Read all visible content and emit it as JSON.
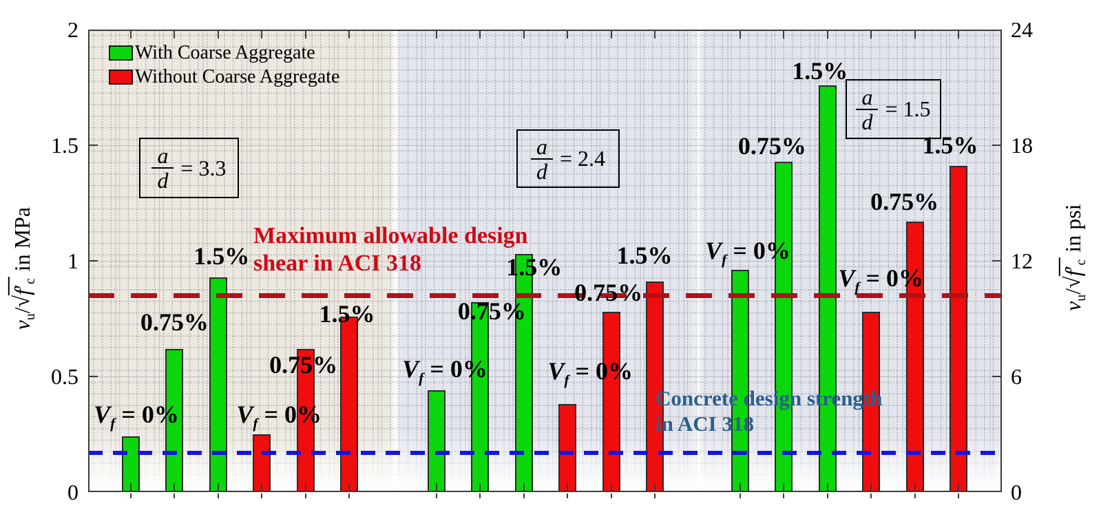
{
  "chart_data": {
    "type": "bar",
    "title": "",
    "left_axis": {
      "unit": "in MPa",
      "range_mpa": [
        0,
        2
      ],
      "tick_values": [
        2,
        1.5,
        1,
        0.5,
        0
      ],
      "tick_labels": [
        "2",
        "1.5",
        "1",
        "0.5",
        "0"
      ],
      "parts": {
        "sym": "v",
        "sym_sub": "u",
        "slash": "/",
        "sqrt": "√",
        "f": "f",
        "prime": "′",
        "f_sub": "c",
        "unit": "in MPa"
      }
    },
    "right_axis": {
      "unit": "in psi",
      "range_psi": [
        0,
        24
      ],
      "tick_values": [
        2,
        1.5,
        1,
        0.5,
        0
      ],
      "tick_labels": [
        "24",
        "18",
        "12",
        "6",
        "0"
      ],
      "parts": {
        "sym": "v",
        "sym_sub": "u",
        "slash": "/",
        "sqrt": "√",
        "f": "f",
        "prime": "′",
        "f_sub": "c",
        "unit": "in psi"
      }
    },
    "legend": [
      {
        "label": "With Coarse Aggregate",
        "color": "#0CD60C"
      },
      {
        "label": "Without Coarse Aggregate",
        "color": "#F00D0D"
      }
    ],
    "math": {
      "frac_num": "a",
      "frac_den": "d",
      "equals": "="
    },
    "groups": [
      {
        "ad": "3.3",
        "bars": [
          {
            "series": "with",
            "vf": "0%",
            "label": "Vf = 0%",
            "value_mpa": 0.24,
            "label_dx": 8,
            "label_dy": 14
          },
          {
            "series": "with",
            "vf": "0.75%",
            "label": "0.75%",
            "value_mpa": 0.62,
            "label_dx": 0,
            "label_dy": 21
          },
          {
            "series": "with",
            "vf": "1.5%",
            "label": "1.5%",
            "value_mpa": 0.93,
            "label_dx": 5,
            "label_dy": 13
          },
          {
            "series": "without",
            "vf": "0%",
            "label": "Vf = 0%",
            "value_mpa": 0.25,
            "label_dx": 25,
            "label_dy": 11
          },
          {
            "series": "without",
            "vf": "0.75%",
            "label": "0.75%",
            "value_mpa": 0.62,
            "label_dx": -3,
            "label_dy": -41
          },
          {
            "series": "without",
            "vf": "1.5%",
            "label": "1.5%",
            "value_mpa": 0.76,
            "label_dx": -3,
            "label_dy": -14
          }
        ]
      },
      {
        "ad": "2.4",
        "bars": [
          {
            "series": "with",
            "vf": "0%",
            "label": "Vf = 0%",
            "value_mpa": 0.44,
            "label_dx": 12,
            "label_dy": 13
          },
          {
            "series": "with",
            "vf": "0.75%",
            "label": "0.75%",
            "value_mpa": 0.82,
            "label_dx": 17,
            "label_dy": -31
          },
          {
            "series": "with",
            "vf": "1.5%",
            "label": "1.5%",
            "value_mpa": 1.03,
            "label_dx": 15,
            "label_dy": -37
          },
          {
            "series": "without",
            "vf": "0%",
            "label": "Vf = 0%",
            "value_mpa": 0.38,
            "label_dx": 33,
            "label_dy": 30
          },
          {
            "series": "without",
            "vf": "0.75%",
            "label": "0.75%",
            "value_mpa": 0.78,
            "label_dx": -4,
            "label_dy": 10
          },
          {
            "series": "without",
            "vf": "1.5%",
            "label": "1.5%",
            "value_mpa": 0.91,
            "label_dx": -15,
            "label_dy": 20
          }
        ]
      },
      {
        "ad": "1.5",
        "bars": [
          {
            "series": "with",
            "vf": "0%",
            "label": "Vf = 0%",
            "value_mpa": 0.96,
            "label_dx": 11,
            "label_dy": 10
          },
          {
            "series": "with",
            "vf": "0.75%",
            "label": "0.75%",
            "value_mpa": 1.43,
            "label_dx": -17,
            "label_dy": 5
          },
          {
            "series": "with",
            "vf": "1.5%",
            "label": "1.5%",
            "value_mpa": 1.76,
            "label_dx": -11,
            "label_dy": 3
          },
          {
            "series": "without",
            "vf": "0%",
            "label": "Vf = 0%",
            "value_mpa": 0.78,
            "label_dx": 14,
            "label_dy": 31
          },
          {
            "series": "without",
            "vf": "0.75%",
            "label": "0.75%",
            "value_mpa": 1.17,
            "label_dx": -15,
            "label_dy": 11
          },
          {
            "series": "without",
            "vf": "1.5%",
            "label": "1.5%",
            "value_mpa": 1.41,
            "label_dx": -12,
            "label_dy": 12
          }
        ]
      }
    ],
    "reference_lines": [
      {
        "name": "max-allowable-design-shear",
        "value_mpa": 0.85,
        "value_psi": 10.2,
        "color": "#B01218",
        "style": "dashed"
      },
      {
        "name": "concrete-design-strength",
        "value_mpa": 0.17,
        "value_psi": 2.0,
        "color": "#1414E8",
        "style": "dashed"
      }
    ],
    "layout_hints": {
      "grid": "dotted-minor",
      "legend_position": "top-left",
      "group_panels": 3
    }
  },
  "annotations": {
    "max_shear": {
      "line1": "Maximum allowable design",
      "line2": "shear in ACI 318",
      "color": "#D00A14"
    },
    "concrete": {
      "line1": "Concrete design strength",
      "line2": "in ACI 318",
      "color": "#2B5F8E"
    }
  }
}
